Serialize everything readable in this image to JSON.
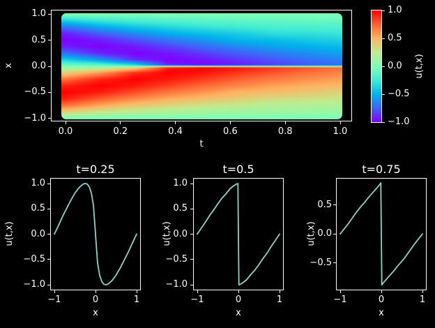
{
  "figure": {
    "background": "#000000",
    "text_color": "#ffffff",
    "frame_color": "#ffffff",
    "line_color": "#8dd3c7"
  },
  "chart_data": [
    {
      "type": "heatmap",
      "title": "",
      "xlabel": "t",
      "ylabel": "x",
      "colorbar_label": "u(t,x)",
      "xlim": [
        -0.05,
        1.05
      ],
      "ylim": [
        -1.08,
        1.08
      ],
      "clim": [
        -1.0,
        1.0
      ],
      "xtick_vals": [
        0.0,
        0.2,
        0.4,
        0.6,
        0.8,
        1.0
      ],
      "xtick_labels": [
        "0.0",
        "0.2",
        "0.4",
        "0.6",
        "0.8",
        "1.0"
      ],
      "ytick_vals": [
        1.0,
        0.5,
        0.0,
        -0.5,
        -1.0
      ],
      "ytick_labels": [
        "1.0",
        "0.5",
        "0.0",
        "−0.5",
        "−1.0"
      ],
      "colorbar_tick_vals": [
        1.0,
        0.5,
        0.0,
        -0.5,
        -1.0
      ],
      "colorbar_tick_labels": [
        "1.0",
        "0.5",
        "0.0",
        "−0.5",
        "−1.0"
      ],
      "colormap": {
        "name": "rainbow",
        "stops": [
          {
            "v": -1.0,
            "color": "#8000ff"
          },
          {
            "v": -0.75,
            "color": "#4062fa"
          },
          {
            "v": -0.5,
            "color": "#00b4ec"
          },
          {
            "v": -0.25,
            "color": "#40ecd4"
          },
          {
            "v": 0.0,
            "color": "#80ffb5"
          },
          {
            "v": 0.25,
            "color": "#bfec8e"
          },
          {
            "v": 0.5,
            "color": "#ffb461"
          },
          {
            "v": 0.75,
            "color": "#ff6232"
          },
          {
            "v": 1.0,
            "color": "#ff0000"
          }
        ]
      },
      "t": [
        0,
        0.125,
        0.25,
        0.375,
        0.5,
        0.625,
        0.75,
        0.875,
        1.0
      ],
      "x": [
        -1,
        -0.875,
        -0.75,
        -0.625,
        -0.5,
        -0.375,
        -0.25,
        -0.125,
        -0.025,
        0,
        0.025,
        0.125,
        0.25,
        0.375,
        0.5,
        0.625,
        0.75,
        0.875,
        1
      ],
      "u": [
        [
          0,
          0.383,
          0.707,
          0.924,
          1.0,
          0.924,
          0.707,
          0.383,
          0.08,
          0,
          -0.08,
          -0.383,
          -0.707,
          -0.924,
          -1.0,
          -0.924,
          -0.707,
          -0.383,
          0
        ],
        [
          0,
          0.279,
          0.543,
          0.768,
          0.934,
          1.0,
          0.908,
          0.581,
          0.13,
          0,
          -0.13,
          -0.581,
          -0.908,
          -1.0,
          -0.934,
          -0.768,
          -0.543,
          -0.279,
          0
        ],
        [
          0,
          0.218,
          0.434,
          0.635,
          0.805,
          0.941,
          1.0,
          0.882,
          0.34,
          0,
          -0.34,
          -0.882,
          -1.0,
          -0.941,
          -0.805,
          -0.635,
          -0.434,
          -0.218,
          0
        ],
        [
          0,
          0.175,
          0.357,
          0.523,
          0.691,
          0.832,
          0.944,
          1.0,
          0.92,
          0,
          -0.92,
          -1.0,
          -0.944,
          -0.832,
          -0.691,
          -0.523,
          -0.357,
          -0.175,
          0
        ],
        [
          0,
          0.147,
          0.297,
          0.454,
          0.6,
          0.729,
          0.854,
          0.951,
          0.996,
          0,
          -0.996,
          -0.951,
          -0.854,
          -0.729,
          -0.6,
          -0.454,
          -0.297,
          -0.147,
          0
        ],
        [
          0,
          0.125,
          0.255,
          0.4,
          0.49,
          0.644,
          0.758,
          0.867,
          0.94,
          0,
          -0.94,
          -0.867,
          -0.758,
          -0.644,
          -0.49,
          -0.4,
          -0.255,
          -0.125,
          0
        ],
        [
          0,
          0.118,
          0.211,
          0.327,
          0.465,
          0.56,
          0.678,
          0.788,
          0.86,
          0,
          -0.86,
          -0.788,
          -0.678,
          -0.56,
          -0.465,
          -0.327,
          -0.211,
          -0.118,
          0
        ],
        [
          0,
          0.105,
          0.206,
          0.309,
          0.415,
          0.517,
          0.616,
          0.71,
          0.79,
          0,
          -0.79,
          -0.71,
          -0.616,
          -0.517,
          -0.415,
          -0.309,
          -0.206,
          -0.105,
          0
        ],
        [
          0,
          0.094,
          0.189,
          0.282,
          0.374,
          0.468,
          0.562,
          0.644,
          0.72,
          0,
          -0.72,
          -0.644,
          -0.562,
          -0.468,
          -0.374,
          -0.282,
          -0.189,
          -0.094,
          0
        ]
      ]
    },
    {
      "type": "line",
      "title": "t=0.25",
      "xlabel": "x",
      "ylabel": "u(t,x)",
      "color": "#8dd3c7",
      "xlim": [
        -1.1,
        1.1
      ],
      "ylim": [
        -1.1,
        1.1
      ],
      "xtick_vals": [
        -1,
        0,
        1
      ],
      "xtick_labels": [
        "−1",
        "0",
        "1"
      ],
      "ytick_vals": [
        1.0,
        0.5,
        0.0,
        -0.5,
        -1.0
      ],
      "ytick_labels": [
        "1.0",
        "0.5",
        "0.0",
        "−0.5",
        "−1.0"
      ],
      "x": [
        -1,
        -0.9,
        -0.8,
        -0.7,
        -0.6,
        -0.5,
        -0.4,
        -0.3,
        -0.25,
        -0.2,
        -0.15,
        -0.1,
        -0.05,
        0,
        0.05,
        0.1,
        0.15,
        0.2,
        0.25,
        0.3,
        0.4,
        0.5,
        0.6,
        0.7,
        0.8,
        0.9,
        1
      ],
      "y": [
        0,
        0.17,
        0.35,
        0.51,
        0.67,
        0.81,
        0.92,
        0.99,
        1.0,
        0.99,
        0.93,
        0.81,
        0.57,
        0,
        -0.57,
        -0.81,
        -0.93,
        -0.99,
        -1.0,
        -0.99,
        -0.92,
        -0.81,
        -0.67,
        -0.51,
        -0.35,
        -0.17,
        0
      ]
    },
    {
      "type": "line",
      "title": "t=0.5",
      "xlabel": "x",
      "ylabel": "u(t,x)",
      "color": "#8dd3c7",
      "xlim": [
        -1.1,
        1.1
      ],
      "ylim": [
        -1.1,
        1.1
      ],
      "xtick_vals": [
        -1,
        0,
        1
      ],
      "xtick_labels": [
        "−1",
        "0",
        "1"
      ],
      "ytick_vals": [
        1.0,
        0.5,
        0.0,
        -0.5,
        -1.0
      ],
      "ytick_labels": [
        "1.0",
        "0.5",
        "0.0",
        "−0.5",
        "−1.0"
      ],
      "x": [
        -1,
        -0.9,
        -0.8,
        -0.7,
        -0.6,
        -0.5,
        -0.4,
        -0.3,
        -0.2,
        -0.125,
        -0.05,
        -0.012,
        0.012,
        0.05,
        0.125,
        0.2,
        0.3,
        0.4,
        0.5,
        0.6,
        0.7,
        0.8,
        0.9,
        1
      ],
      "y": [
        0,
        0.12,
        0.24,
        0.37,
        0.48,
        0.6,
        0.71,
        0.8,
        0.9,
        0.95,
        0.99,
        1.0,
        -1.0,
        -0.99,
        -0.95,
        -0.9,
        -0.8,
        -0.71,
        -0.6,
        -0.48,
        -0.37,
        -0.24,
        -0.12,
        0
      ]
    },
    {
      "type": "line",
      "title": "t=0.75",
      "xlabel": "x",
      "ylabel": "u(t,x)",
      "color": "#8dd3c7",
      "xlim": [
        -1.1,
        1.1
      ],
      "ylim": [
        -0.97,
        0.97
      ],
      "xtick_vals": [
        -1,
        0,
        1
      ],
      "xtick_labels": [
        "−1",
        "0",
        "1"
      ],
      "ytick_vals": [
        0.5,
        0.0,
        -0.5
      ],
      "ytick_labels": [
        "0.5",
        "0.0",
        "−0.5"
      ],
      "x": [
        -1,
        -0.9,
        -0.8,
        -0.7,
        -0.6,
        -0.5,
        -0.4,
        -0.3,
        -0.2,
        -0.1,
        -0.03,
        -0.012,
        0.012,
        0.03,
        0.1,
        0.2,
        0.3,
        0.4,
        0.5,
        0.6,
        0.7,
        0.8,
        0.9,
        1
      ],
      "y": [
        0,
        0.09,
        0.18,
        0.28,
        0.38,
        0.47,
        0.55,
        0.64,
        0.72,
        0.8,
        0.86,
        0.88,
        -0.88,
        -0.86,
        -0.8,
        -0.72,
        -0.64,
        -0.55,
        -0.47,
        -0.38,
        -0.28,
        -0.18,
        -0.09,
        0
      ]
    }
  ]
}
